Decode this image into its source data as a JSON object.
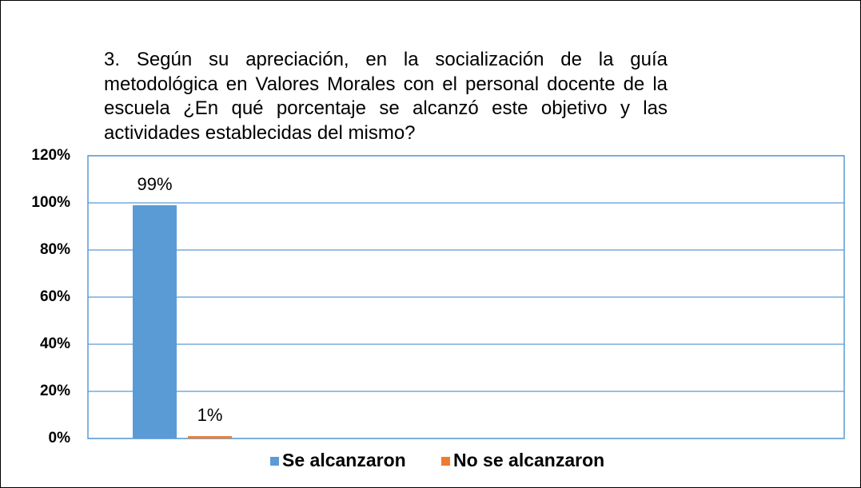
{
  "chart_data": {
    "type": "bar",
    "title": "3. Según su apreciación, en la socialización de la guía metodológica en Valores Morales con el personal docente de la escuela ¿En qué porcentaje se alcanzó este objetivo y las actividades establecidas del mismo?",
    "categories": [
      null
    ],
    "series": [
      {
        "name": "Se alcanzaron",
        "color": "#5b9bd5",
        "values": [
          99
        ],
        "value_labels": [
          "99%"
        ]
      },
      {
        "name": "No se alcanzaron",
        "color": "#ed7d31",
        "values": [
          1
        ],
        "value_labels": [
          "1%"
        ]
      }
    ],
    "ylim": [
      0,
      120
    ],
    "yticks": [
      {
        "value": 0,
        "label": "0%"
      },
      {
        "value": 20,
        "label": "20%"
      },
      {
        "value": 40,
        "label": "40%"
      },
      {
        "value": 60,
        "label": "60%"
      },
      {
        "value": 80,
        "label": "80%"
      },
      {
        "value": 100,
        "label": "100%"
      },
      {
        "value": 120,
        "label": "120%"
      }
    ],
    "grid": true,
    "legend": "bottom"
  }
}
